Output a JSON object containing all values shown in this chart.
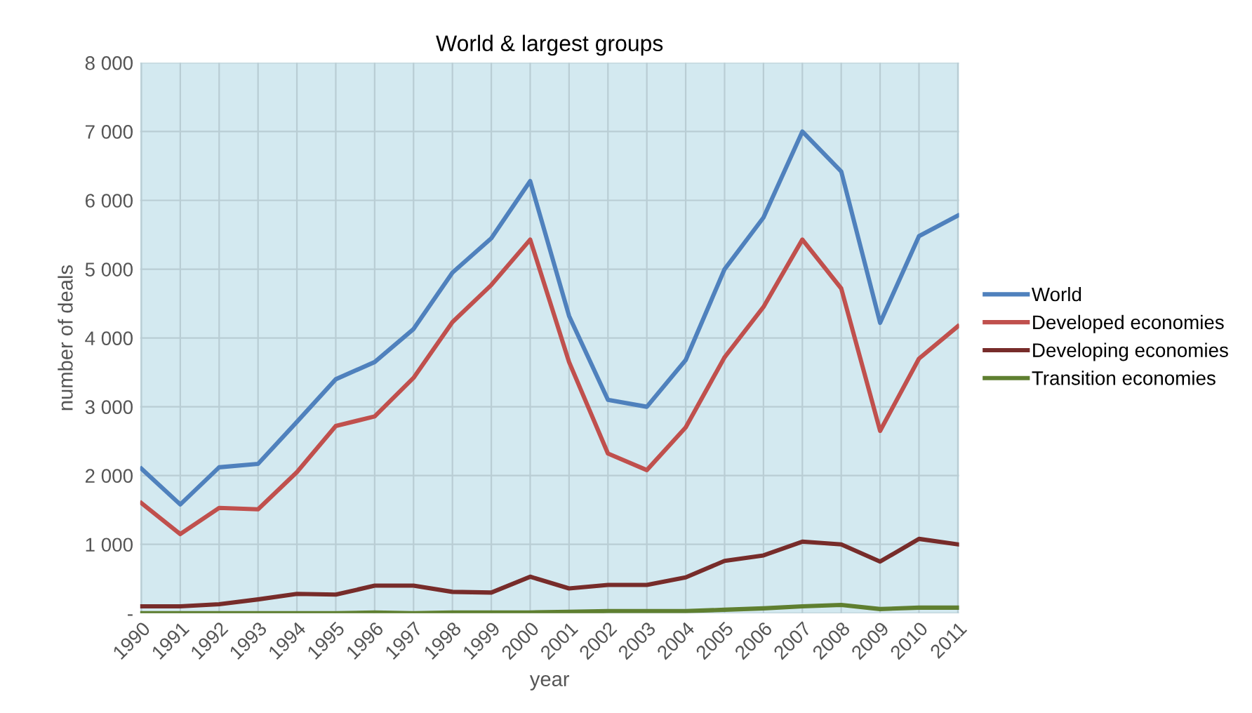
{
  "chart_data": {
    "type": "line",
    "title": "World & largest groups",
    "xlabel": "year",
    "ylabel": "number of deals",
    "categories": [
      "1990",
      "1991",
      "1992",
      "1993",
      "1994",
      "1995",
      "1996",
      "1997",
      "1998",
      "1999",
      "2000",
      "2001",
      "2002",
      "2003",
      "2004",
      "2005",
      "2006",
      "2007",
      "2008",
      "2009",
      "2010",
      "2011"
    ],
    "series": [
      {
        "name": "World",
        "color": "#4f81bd",
        "values": [
          2100,
          1580,
          2120,
          2170,
          2780,
          3400,
          3650,
          4130,
          4950,
          5450,
          6280,
          4320,
          3100,
          3000,
          3680,
          5000,
          5750,
          7000,
          6420,
          4220,
          5480,
          5780
        ]
      },
      {
        "name": "Developed economies",
        "color": "#c0504d",
        "values": [
          1600,
          1150,
          1530,
          1510,
          2050,
          2720,
          2860,
          3420,
          4230,
          4770,
          5430,
          3650,
          2320,
          2080,
          2700,
          3720,
          4450,
          5430,
          4720,
          2650,
          3700,
          4170
        ]
      },
      {
        "name": "Developing economies",
        "color": "#772c2a",
        "values": [
          100,
          100,
          130,
          200,
          280,
          270,
          400,
          400,
          310,
          300,
          530,
          360,
          410,
          410,
          520,
          760,
          840,
          1040,
          1000,
          750,
          1080,
          1000
        ]
      },
      {
        "name": "Transition economies",
        "color": "#5f7f30",
        "values": [
          0,
          0,
          0,
          0,
          0,
          0,
          10,
          0,
          10,
          10,
          10,
          20,
          30,
          30,
          30,
          50,
          70,
          100,
          120,
          60,
          80,
          80
        ]
      }
    ],
    "ylim": [
      0,
      8000
    ],
    "yticks": [
      {
        "value": 0,
        "label": "-"
      },
      {
        "value": 1000,
        "label": "1 000"
      },
      {
        "value": 2000,
        "label": "2 000"
      },
      {
        "value": 3000,
        "label": "3 000"
      },
      {
        "value": 4000,
        "label": "4 000"
      },
      {
        "value": 5000,
        "label": "5 000"
      },
      {
        "value": 6000,
        "label": "6 000"
      },
      {
        "value": 7000,
        "label": "7 000"
      },
      {
        "value": 8000,
        "label": "8 000"
      }
    ],
    "grid": true,
    "legend": "right",
    "marker": "none",
    "line_style": "solid"
  }
}
